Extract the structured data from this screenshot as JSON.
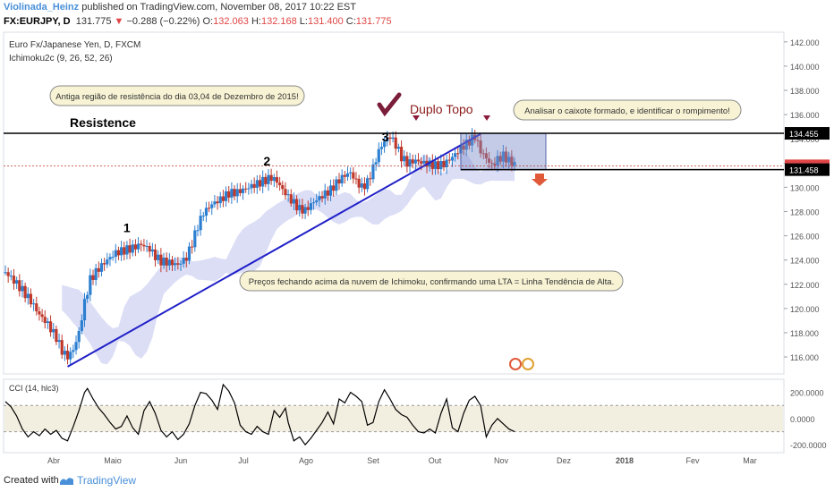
{
  "header": {
    "author": "Violinada_Heinz",
    "published_text": "published on TradingView.com, November 08, 2017 10:22 EST",
    "symbol": "FX:EURJPY, D",
    "last": "131.775",
    "arrow": "▼",
    "change": "−0.288 (−0.22%)",
    "o_label": "O:",
    "o": "132.063",
    "h_label": "H:",
    "h": "132.168",
    "l_label": "L:",
    "l": "131.400",
    "c_label": "C:",
    "c": "131.775"
  },
  "footer": {
    "created": "Created with",
    "brand": "TradingView"
  },
  "chart_data": [
    {
      "type": "candlestick",
      "title": "Euro Fx/Japanese Yen, D, FXCM",
      "indicator": "Ichimoku2c (9, 26, 52, 26)",
      "x_ticks": [
        "Abr",
        "Maio",
        "Jun",
        "Jul",
        "Ago",
        "Set",
        "Out",
        "Nov",
        "Dez",
        "2018",
        "Fev",
        "Mar"
      ],
      "y_ticks": [
        "142.000",
        "140.000",
        "138.000",
        "136.000",
        "134.000",
        "132.000",
        "130.000",
        "128.000",
        "126.000",
        "124.000",
        "122.000",
        "120.000",
        "118.000",
        "116.000"
      ],
      "ylim": [
        114.6,
        142.8
      ],
      "price_labels": {
        "resistance": "134.455",
        "last": "131.775",
        "support": "131.458"
      },
      "close_path": [
        [
          0,
          123.0
        ],
        [
          6,
          122.3
        ],
        [
          12,
          121.5
        ],
        [
          18,
          120.6
        ],
        [
          24,
          119.5
        ],
        [
          30,
          118.7
        ],
        [
          36,
          117.6
        ],
        [
          40,
          116.5
        ],
        [
          44,
          116.0
        ],
        [
          48,
          116.6
        ],
        [
          52,
          118.0
        ],
        [
          56,
          120.5
        ],
        [
          60,
          122.4
        ],
        [
          66,
          123.3
        ],
        [
          72,
          124.0
        ],
        [
          78,
          124.6
        ],
        [
          84,
          124.8
        ],
        [
          90,
          125.0
        ],
        [
          96,
          125.3
        ],
        [
          102,
          124.9
        ],
        [
          106,
          124.3
        ],
        [
          110,
          123.9
        ],
        [
          116,
          123.8
        ],
        [
          122,
          123.6
        ],
        [
          128,
          124.2
        ],
        [
          132,
          125.4
        ],
        [
          136,
          126.8
        ],
        [
          140,
          127.9
        ],
        [
          146,
          128.6
        ],
        [
          152,
          129.0
        ],
        [
          158,
          129.5
        ],
        [
          164,
          129.6
        ],
        [
          170,
          129.9
        ],
        [
          176,
          130.2
        ],
        [
          182,
          130.5
        ],
        [
          188,
          130.8
        ],
        [
          192,
          130.5
        ],
        [
          196,
          129.8
        ],
        [
          200,
          129.2
        ],
        [
          204,
          128.7
        ],
        [
          208,
          128.2
        ],
        [
          212,
          128.1
        ],
        [
          218,
          128.8
        ],
        [
          224,
          129.3
        ],
        [
          230,
          129.8
        ],
        [
          236,
          130.6
        ],
        [
          240,
          131.0
        ],
        [
          244,
          131.2
        ],
        [
          248,
          130.5
        ],
        [
          252,
          130.0
        ],
        [
          256,
          130.4
        ],
        [
          260,
          131.6
        ],
        [
          264,
          133.0
        ],
        [
          268,
          133.8
        ],
        [
          272,
          134.2
        ],
        [
          276,
          133.5
        ],
        [
          280,
          132.5
        ],
        [
          284,
          132.0
        ],
        [
          290,
          132.2
        ],
        [
          296,
          132.0
        ],
        [
          300,
          131.9
        ],
        [
          304,
          131.8
        ],
        [
          310,
          131.9
        ],
        [
          316,
          132.5
        ],
        [
          322,
          133.2
        ],
        [
          328,
          133.8
        ],
        [
          332,
          134.2
        ],
        [
          336,
          133.0
        ],
        [
          340,
          132.4
        ],
        [
          344,
          131.8
        ],
        [
          348,
          132.3
        ],
        [
          352,
          132.6
        ],
        [
          356,
          132.2
        ],
        [
          360,
          131.9
        ],
        [
          364,
          131.6
        ]
      ],
      "annotations": [
        {
          "text": "1",
          "price": 126.3,
          "t": 86
        },
        {
          "text": "2",
          "price": 131.8,
          "t": 185
        },
        {
          "text": "3",
          "price": 133.8,
          "t": 270
        },
        {
          "text": "Duplo Topo",
          "price": 135.4,
          "t": 297
        },
        {
          "text": "Resistence",
          "price": 134.9,
          "t": 70
        },
        {
          "text": "Antiga região de resistência do dia 03,04 de Dezembro de 2015!"
        },
        {
          "text": "Analisar o caixote formado, e identificar o rompimento!"
        },
        {
          "text": "Preços fechando acima da nuvem de Ichimoku, confirmando uma LTA = Linha Tendência de Alta."
        }
      ],
      "trendline": {
        "from": [
          44,
          115.2
        ],
        "to": [
          336,
          134.4
        ]
      }
    },
    {
      "type": "line",
      "title": "CCI (14, hlc3)",
      "y_ticks": [
        "200.0000",
        "0.0000",
        "-200.0000"
      ],
      "ylim": [
        -260,
        300
      ],
      "values": [
        [
          0,
          130
        ],
        [
          4,
          90
        ],
        [
          8,
          20
        ],
        [
          12,
          -80
        ],
        [
          16,
          -140
        ],
        [
          20,
          -100
        ],
        [
          24,
          -130
        ],
        [
          28,
          -80
        ],
        [
          32,
          -120
        ],
        [
          36,
          -90
        ],
        [
          40,
          -150
        ],
        [
          44,
          -170
        ],
        [
          48,
          -60
        ],
        [
          52,
          60
        ],
        [
          56,
          200
        ],
        [
          58,
          230
        ],
        [
          62,
          150
        ],
        [
          66,
          80
        ],
        [
          70,
          30
        ],
        [
          74,
          -30
        ],
        [
          78,
          -80
        ],
        [
          82,
          -60
        ],
        [
          86,
          20
        ],
        [
          90,
          -70
        ],
        [
          94,
          -120
        ],
        [
          98,
          60
        ],
        [
          102,
          130
        ],
        [
          106,
          40
        ],
        [
          110,
          -90
        ],
        [
          114,
          -140
        ],
        [
          118,
          -100
        ],
        [
          122,
          -160
        ],
        [
          126,
          -120
        ],
        [
          130,
          -40
        ],
        [
          134,
          100
        ],
        [
          138,
          200
        ],
        [
          142,
          190
        ],
        [
          146,
          140
        ],
        [
          150,
          70
        ],
        [
          154,
          260
        ],
        [
          158,
          210
        ],
        [
          162,
          120
        ],
        [
          166,
          -50
        ],
        [
          170,
          -100
        ],
        [
          174,
          -120
        ],
        [
          178,
          -60
        ],
        [
          182,
          -100
        ],
        [
          186,
          -120
        ],
        [
          190,
          60
        ],
        [
          194,
          10
        ],
        [
          198,
          80
        ],
        [
          200,
          -30
        ],
        [
          204,
          -170
        ],
        [
          208,
          -140
        ],
        [
          212,
          -200
        ],
        [
          216,
          -150
        ],
        [
          220,
          -90
        ],
        [
          224,
          -30
        ],
        [
          228,
          50
        ],
        [
          232,
          -40
        ],
        [
          236,
          150
        ],
        [
          240,
          120
        ],
        [
          244,
          200
        ],
        [
          248,
          170
        ],
        [
          252,
          130
        ],
        [
          256,
          -50
        ],
        [
          260,
          -30
        ],
        [
          264,
          130
        ],
        [
          268,
          220
        ],
        [
          272,
          150
        ],
        [
          276,
          70
        ],
        [
          280,
          30
        ],
        [
          284,
          10
        ],
        [
          288,
          -50
        ],
        [
          292,
          -100
        ],
        [
          296,
          -110
        ],
        [
          300,
          -80
        ],
        [
          304,
          -110
        ],
        [
          308,
          40
        ],
        [
          312,
          150
        ],
        [
          316,
          -70
        ],
        [
          320,
          -100
        ],
        [
          324,
          40
        ],
        [
          328,
          140
        ],
        [
          332,
          170
        ],
        [
          336,
          100
        ],
        [
          340,
          -140
        ],
        [
          344,
          -50
        ],
        [
          348,
          0
        ],
        [
          352,
          -40
        ],
        [
          356,
          -80
        ],
        [
          360,
          -100
        ]
      ]
    }
  ]
}
